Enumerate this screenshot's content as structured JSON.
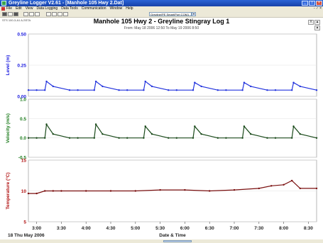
{
  "window": {
    "title": "Greyline Logger V2.61 - [Manhole 105 Hwy 2.Dat]",
    "buttons": [
      "_",
      "□",
      "×"
    ]
  },
  "menu": {
    "items": [
      "File",
      "Edit",
      "View",
      "Data Logging",
      "Data Tools",
      "Communication",
      "Window",
      "Help"
    ],
    "right": "- ♂ ×"
  },
  "toolbar": {
    "combo_value": "Greyline/PE Smart/Port COM1 - 38.4K bps"
  },
  "info": "STS 100-3-A1 A,SSTA",
  "side_buttons": [
    "X",
    "▲",
    "▲"
  ],
  "chart_data": [
    {
      "type": "line",
      "title": "Manhole 105 Hwy 2 - Greyline Stingray Log 1",
      "subtitle": "From: May 18 2006 12:50 To May 19 2006 8:50",
      "ylabel": "Level (m)",
      "ylabel_color": "#1a1adf",
      "color": "#2233dd",
      "ylim": [
        0,
        0.5
      ],
      "yticks": [
        "0.50",
        "0.25",
        "0.00"
      ],
      "x": [
        "2:50",
        "3:00",
        "3:10",
        "3:12",
        "3:20",
        "3:40",
        "3:50",
        "4:10",
        "4:12",
        "4:20",
        "4:40",
        "4:50",
        "5:10",
        "5:12",
        "5:20",
        "5:40",
        "5:50",
        "6:10",
        "6:12",
        "6:20",
        "6:40",
        "6:50",
        "7:10",
        "7:12",
        "7:20",
        "7:40",
        "7:50",
        "8:10",
        "8:12",
        "8:20",
        "8:40"
      ],
      "series": [
        {
          "values": [
            0.05,
            0.05,
            0.05,
            0.12,
            0.08,
            0.05,
            0.05,
            0.05,
            0.12,
            0.08,
            0.05,
            0.05,
            0.05,
            0.12,
            0.08,
            0.05,
            0.05,
            0.05,
            0.11,
            0.08,
            0.05,
            0.05,
            0.05,
            0.11,
            0.08,
            0.05,
            0.05,
            0.05,
            0.11,
            0.08,
            0.05
          ]
        }
      ]
    },
    {
      "type": "line",
      "ylabel": "Velocity (m/s)",
      "ylabel_color": "#1a7a1a",
      "color": "#1a4a1a",
      "ylim": [
        -0.5,
        1.0
      ],
      "yticks": [
        "1.0",
        "0.5",
        "0.0",
        "-0.5"
      ],
      "x": [
        "2:50",
        "3:00",
        "3:10",
        "3:12",
        "3:20",
        "3:40",
        "3:50",
        "4:10",
        "4:12",
        "4:20",
        "4:40",
        "4:50",
        "5:10",
        "5:12",
        "5:20",
        "5:40",
        "5:50",
        "6:10",
        "6:12",
        "6:20",
        "6:40",
        "6:50",
        "7:10",
        "7:12",
        "7:20",
        "7:40",
        "7:50",
        "8:10",
        "8:12",
        "8:20",
        "8:40"
      ],
      "series": [
        {
          "values": [
            0.0,
            0.0,
            0.0,
            0.35,
            0.1,
            0.0,
            0.0,
            0.0,
            0.35,
            0.1,
            0.0,
            0.0,
            0.0,
            0.3,
            0.1,
            0.0,
            0.0,
            0.0,
            0.3,
            0.1,
            0.0,
            0.0,
            0.0,
            0.3,
            0.1,
            0.0,
            0.0,
            0.0,
            0.3,
            0.1,
            0.0
          ]
        }
      ]
    },
    {
      "type": "line",
      "ylabel": "Temperature (°C)",
      "ylabel_color": "#b01010",
      "color": "#7a0f0f",
      "ylim": [
        3,
        15
      ],
      "yticks": [
        "15",
        "10",
        "5"
      ],
      "x": [
        "2:50",
        "3:00",
        "3:10",
        "3:20",
        "3:30",
        "4:00",
        "4:30",
        "5:00",
        "5:30",
        "6:00",
        "6:30",
        "7:00",
        "7:30",
        "7:45",
        "8:00",
        "8:10",
        "8:20",
        "8:40"
      ],
      "series": [
        {
          "values": [
            8.5,
            8.5,
            9.0,
            9.0,
            9.0,
            9.0,
            9.0,
            9.0,
            9.2,
            9.2,
            9.0,
            9.2,
            9.5,
            10.0,
            10.2,
            11.0,
            9.5,
            9.5
          ]
        }
      ],
      "xlabel": "Date & Time",
      "date_label": "18 Thu May 2006",
      "xticks": [
        "3:00",
        "3:30",
        "4:00",
        "4:30",
        "5:00",
        "5:30",
        "6:00",
        "6:30",
        "7:00",
        "7:30",
        "8:00",
        "8:30"
      ]
    }
  ]
}
